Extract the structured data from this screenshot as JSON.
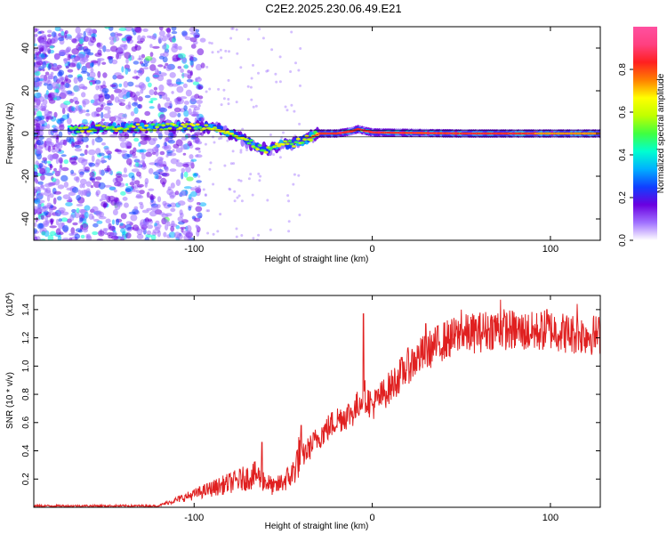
{
  "title": "C2E2.2025.230.06.49.E21",
  "chart_data": [
    {
      "type": "heatmap",
      "xlabel": "Height of straight line (km)",
      "ylabel": "Frequency (Hz)",
      "xlim": [
        -190,
        128
      ],
      "ylim": [
        -50,
        50
      ],
      "xticks": [
        -100,
        0,
        100
      ],
      "yticks": [
        -40,
        -20,
        0,
        20,
        40
      ],
      "colorbar": {
        "label": "Normalized spectral amplitude",
        "range": [
          0,
          1
        ],
        "ticks": [
          "0.0",
          "0.2",
          "0.4",
          "0.6",
          "0.8"
        ],
        "colors": [
          "#ffffff",
          "#a070ff",
          "#6a00e0",
          "#1040ff",
          "#00b0ff",
          "#00ffd0",
          "#40ff40",
          "#c0ff00",
          "#ffff00",
          "#ff8000",
          "#ff2020",
          "#ff4080",
          "#ff50a0"
        ]
      },
      "ridge": [
        {
          "x": -170,
          "y": 2
        },
        {
          "x": -150,
          "y": 2.5
        },
        {
          "x": -135,
          "y": 3
        },
        {
          "x": -120,
          "y": 3
        },
        {
          "x": -100,
          "y": 3.5
        },
        {
          "x": -85,
          "y": 2.5
        },
        {
          "x": -75,
          "y": -2
        },
        {
          "x": -65,
          "y": -6
        },
        {
          "x": -58,
          "y": -8
        },
        {
          "x": -52,
          "y": -5
        },
        {
          "x": -45,
          "y": -5
        },
        {
          "x": -38,
          "y": -3
        },
        {
          "x": -30,
          "y": 0
        },
        {
          "x": -20,
          "y": 0
        },
        {
          "x": -12,
          "y": 1
        },
        {
          "x": -8,
          "y": 2
        },
        {
          "x": 0,
          "y": 0.5
        },
        {
          "x": 50,
          "y": 0
        },
        {
          "x": 128,
          "y": 0
        }
      ]
    },
    {
      "type": "line",
      "xlabel": "Height of straight line (km)",
      "ylabel": "SNR (10 * v/v)",
      "multiplier": "(x10",
      "multiplier_exp": "4",
      "multiplier_close": ")",
      "xlim": [
        -190,
        128
      ],
      "ylim": [
        0,
        1.5
      ],
      "xticks": [
        -100,
        0,
        100
      ],
      "yticks": [
        "0.2",
        "0.4",
        "0.6",
        "0.8",
        "1.0",
        "1.2",
        "1.4"
      ],
      "color": "#e02020",
      "trend": [
        {
          "x": -190,
          "y": 0.01
        },
        {
          "x": -120,
          "y": 0.01
        },
        {
          "x": -100,
          "y": 0.08
        },
        {
          "x": -80,
          "y": 0.15
        },
        {
          "x": -65,
          "y": 0.2
        },
        {
          "x": -55,
          "y": 0.12
        },
        {
          "x": -45,
          "y": 0.2
        },
        {
          "x": -40,
          "y": 0.35
        },
        {
          "x": -30,
          "y": 0.5
        },
        {
          "x": -20,
          "y": 0.62
        },
        {
          "x": -10,
          "y": 0.68
        },
        {
          "x": -5,
          "y": 0.8
        },
        {
          "x": 0,
          "y": 0.72
        },
        {
          "x": 10,
          "y": 0.85
        },
        {
          "x": 20,
          "y": 1.0
        },
        {
          "x": 30,
          "y": 1.1
        },
        {
          "x": 40,
          "y": 1.18
        },
        {
          "x": 50,
          "y": 1.22
        },
        {
          "x": 60,
          "y": 1.24
        },
        {
          "x": 70,
          "y": 1.27
        },
        {
          "x": 80,
          "y": 1.25
        },
        {
          "x": 90,
          "y": 1.24
        },
        {
          "x": 100,
          "y": 1.26
        },
        {
          "x": 110,
          "y": 1.23
        },
        {
          "x": 128,
          "y": 1.22
        }
      ],
      "peaks": [
        {
          "x": -62,
          "y": 0.46
        },
        {
          "x": -40,
          "y": 0.58
        },
        {
          "x": -5,
          "y": 1.37
        },
        {
          "x": 30,
          "y": 1.3
        },
        {
          "x": 50,
          "y": 1.4
        },
        {
          "x": 72,
          "y": 1.47
        },
        {
          "x": 98,
          "y": 1.4
        },
        {
          "x": 115,
          "y": 1.44
        }
      ]
    }
  ]
}
